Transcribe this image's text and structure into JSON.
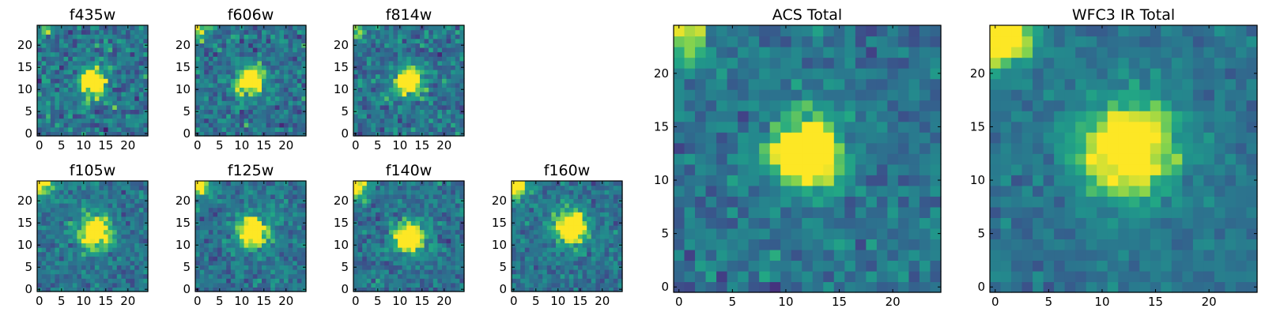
{
  "chart_data": [
    {
      "type": "heatmap",
      "title": "f435w",
      "seed": 11,
      "hot": 0.9,
      "sigma": 2.2,
      "noise": 0.42,
      "corner": 0.25,
      "x_range": [
        0,
        25
      ],
      "y_range": [
        0,
        25
      ],
      "x_ticks": [
        0,
        5,
        10,
        15,
        20
      ],
      "x_tick_labels": [
        "0",
        "5",
        "10",
        "15",
        "20"
      ],
      "y_ticks": [
        0,
        5,
        10,
        15,
        20
      ],
      "y_tick_labels": [
        "0",
        "5",
        "10",
        "15",
        "20"
      ],
      "source_center": [
        12,
        12
      ],
      "colormap": "viridis",
      "grid": false
    },
    {
      "type": "heatmap",
      "title": "f606w",
      "seed": 23,
      "hot": 0.9,
      "sigma": 2.2,
      "noise": 0.38,
      "corner": 0.35,
      "x_range": [
        0,
        25
      ],
      "y_range": [
        0,
        25
      ],
      "x_ticks": [
        0,
        5,
        10,
        15,
        20
      ],
      "x_tick_labels": [
        "0",
        "5",
        "10",
        "15",
        "20"
      ],
      "y_ticks": [
        0,
        5,
        10,
        15,
        20
      ],
      "y_tick_labels": [
        "0",
        "5",
        "10",
        "15",
        "20"
      ],
      "source_center": [
        12,
        12
      ],
      "colormap": "viridis",
      "grid": false
    },
    {
      "type": "heatmap",
      "title": "f814w",
      "seed": 37,
      "hot": 0.9,
      "sigma": 2.2,
      "noise": 0.38,
      "corner": 0.4,
      "x_range": [
        0,
        25
      ],
      "y_range": [
        0,
        25
      ],
      "x_ticks": [
        0,
        5,
        10,
        15,
        20
      ],
      "x_tick_labels": [
        "0",
        "5",
        "10",
        "15",
        "20"
      ],
      "y_ticks": [
        0,
        5,
        10,
        15,
        20
      ],
      "y_tick_labels": [
        "0",
        "5",
        "10",
        "15",
        "20"
      ],
      "source_center": [
        12,
        12
      ],
      "colormap": "viridis",
      "grid": false
    },
    {
      "type": "heatmap",
      "title": "f105w",
      "seed": 41,
      "hot": 0.85,
      "sigma": 2.6,
      "noise": 0.3,
      "corner": 0.7,
      "x_range": [
        0,
        25
      ],
      "y_range": [
        0,
        25
      ],
      "x_ticks": [
        0,
        5,
        10,
        15,
        20
      ],
      "x_tick_labels": [
        "0",
        "5",
        "10",
        "15",
        "20"
      ],
      "y_ticks": [
        0,
        5,
        10,
        15,
        20
      ],
      "y_tick_labels": [
        "0",
        "5",
        "10",
        "15",
        "20"
      ],
      "source_center": [
        12.5,
        13
      ],
      "colormap": "viridis",
      "grid": false
    },
    {
      "type": "heatmap",
      "title": "f125w",
      "seed": 53,
      "hot": 0.9,
      "sigma": 2.4,
      "noise": 0.32,
      "corner": 0.7,
      "x_range": [
        0,
        25
      ],
      "y_range": [
        0,
        25
      ],
      "x_ticks": [
        0,
        5,
        10,
        15,
        20
      ],
      "x_tick_labels": [
        "0",
        "5",
        "10",
        "15",
        "20"
      ],
      "y_ticks": [
        0,
        5,
        10,
        15,
        20
      ],
      "y_tick_labels": [
        "0",
        "5",
        "10",
        "15",
        "20"
      ],
      "source_center": [
        12.5,
        13
      ],
      "colormap": "viridis",
      "grid": false
    },
    {
      "type": "heatmap",
      "title": "f140w",
      "seed": 67,
      "hot": 0.9,
      "sigma": 2.4,
      "noise": 0.32,
      "corner": 0.75,
      "x_range": [
        0,
        25
      ],
      "y_range": [
        0,
        25
      ],
      "x_ticks": [
        0,
        5,
        10,
        15,
        20
      ],
      "x_tick_labels": [
        "0",
        "5",
        "10",
        "15",
        "20"
      ],
      "y_ticks": [
        0,
        5,
        10,
        15,
        20
      ],
      "y_tick_labels": [
        "0",
        "5",
        "10",
        "15",
        "20"
      ],
      "source_center": [
        12,
        12
      ],
      "colormap": "viridis",
      "grid": false
    },
    {
      "type": "heatmap",
      "title": "f160w",
      "seed": 79,
      "hot": 0.75,
      "sigma": 2.8,
      "noise": 0.3,
      "corner": 0.85,
      "x_range": [
        0,
        25
      ],
      "y_range": [
        0,
        25
      ],
      "x_ticks": [
        0,
        5,
        10,
        15,
        20
      ],
      "x_tick_labels": [
        "0",
        "5",
        "10",
        "15",
        "20"
      ],
      "y_ticks": [
        0,
        5,
        10,
        15,
        20
      ],
      "y_tick_labels": [
        "0",
        "5",
        "10",
        "15",
        "20"
      ],
      "source_center": [
        13,
        14
      ],
      "colormap": "viridis",
      "grid": false
    },
    {
      "type": "heatmap",
      "title": "ACS Total",
      "seed": 97,
      "hot": 1.0,
      "sigma": 2.2,
      "noise": 0.3,
      "corner": 0.45,
      "x_range": [
        0,
        25
      ],
      "y_range": [
        0,
        25
      ],
      "x_ticks": [
        0,
        5,
        10,
        15,
        20
      ],
      "x_tick_labels": [
        "0",
        "5",
        "10",
        "15",
        "20"
      ],
      "y_ticks": [
        0,
        5,
        10,
        15,
        20
      ],
      "y_tick_labels": [
        "0",
        "5",
        "10",
        "15",
        "20"
      ],
      "source_center": [
        12,
        12.5
      ],
      "colormap": "viridis",
      "grid": false
    },
    {
      "type": "heatmap",
      "title": "WFC3 IR Total",
      "seed": 113,
      "hot": 0.8,
      "sigma": 3.2,
      "noise": 0.2,
      "corner": 1.0,
      "x_range": [
        0,
        25
      ],
      "y_range": [
        0,
        25
      ],
      "x_ticks": [
        0,
        5,
        10,
        15,
        20
      ],
      "x_tick_labels": [
        "0",
        "5",
        "10",
        "15",
        "20"
      ],
      "y_ticks": [
        0,
        5,
        10,
        15,
        20
      ],
      "y_tick_labels": [
        "0",
        "5",
        "10",
        "15",
        "20"
      ],
      "source_center": [
        12.5,
        13
      ],
      "colormap": "viridis",
      "grid": false
    }
  ]
}
